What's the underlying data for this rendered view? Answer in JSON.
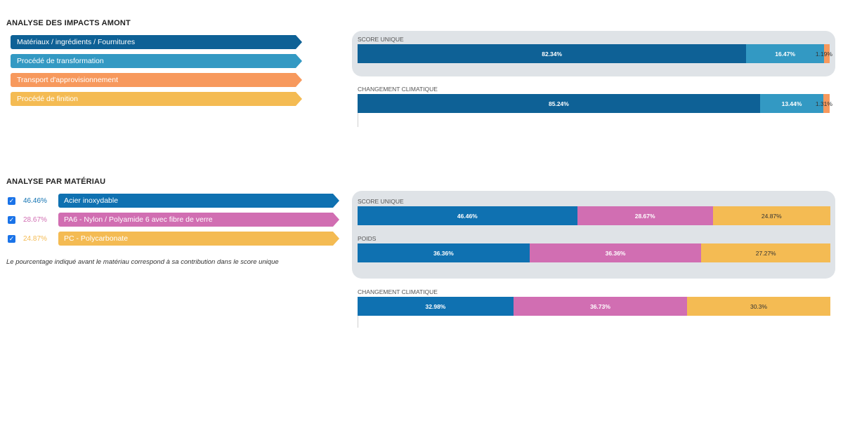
{
  "upstream": {
    "title": "ANALYSE DES IMPACTS AMONT",
    "legend": [
      {
        "label": "Matériaux / ingrédients / Fournitures",
        "color": "#0e6196"
      },
      {
        "label": "Procédé de transformation",
        "color": "#3399c3"
      },
      {
        "label": "Transport d'approvisionnement",
        "color": "#f7995d"
      },
      {
        "label": "Procédé de finition",
        "color": "#f4bb53"
      }
    ]
  },
  "materials": {
    "title": "ANALYSE PAR MATÉRIAU",
    "items": [
      {
        "pct": "46.46%",
        "label": "Acier inoxydable",
        "color": "#0f71b1",
        "checked": true
      },
      {
        "pct": "28.67%",
        "label": "PA6 - Nylon / Polyamide 6 avec fibre de verre",
        "color": "#d16eb2",
        "checked": true
      },
      {
        "pct": "24.87%",
        "label": "PC - Polycarbonate",
        "color": "#f4bb53",
        "checked": true
      }
    ],
    "note": "Le pourcentage indiqué avant le matériau correspond à sa contribution dans le score unique"
  },
  "chart_data": [
    {
      "type": "bar",
      "stacked": true,
      "orientation": "horizontal",
      "title": "SCORE UNIQUE",
      "series": [
        {
          "name": "Matériaux / ingrédients / Fournitures",
          "value": 82.34,
          "label": "82.34%",
          "color": "#0e6196"
        },
        {
          "name": "Procédé de transformation",
          "value": 16.47,
          "label": "16.47%",
          "color": "#3399c3"
        },
        {
          "name": "Transport d'approvisionnement",
          "value": 1.19,
          "label": "1.19%",
          "color": "#f7995d"
        }
      ]
    },
    {
      "type": "bar",
      "stacked": true,
      "orientation": "horizontal",
      "title": "CHANGEMENT CLIMATIQUE",
      "series": [
        {
          "name": "Matériaux / ingrédients / Fournitures",
          "value": 85.24,
          "label": "85.24%",
          "color": "#0e6196"
        },
        {
          "name": "Procédé de transformation",
          "value": 13.44,
          "label": "13.44%",
          "color": "#3399c3"
        },
        {
          "name": "Transport d'approvisionnement",
          "value": 1.31,
          "label": "1.31%",
          "color": "#f7995d"
        }
      ]
    },
    {
      "type": "bar",
      "stacked": true,
      "orientation": "horizontal",
      "title": "SCORE UNIQUE",
      "series": [
        {
          "name": "Acier inoxydable",
          "value": 46.46,
          "label": "46.46%",
          "color": "#0f71b1"
        },
        {
          "name": "PA6 - Nylon / Polyamide 6 avec fibre de verre",
          "value": 28.67,
          "label": "28.67%",
          "color": "#d16eb2"
        },
        {
          "name": "PC - Polycarbonate",
          "value": 24.87,
          "label": "24.87%",
          "color": "#f4bb53"
        }
      ]
    },
    {
      "type": "bar",
      "stacked": true,
      "orientation": "horizontal",
      "title": "POIDS",
      "series": [
        {
          "name": "Acier inoxydable",
          "value": 36.36,
          "label": "36.36%",
          "color": "#0f71b1"
        },
        {
          "name": "PA6 - Nylon / Polyamide 6 avec fibre de verre",
          "value": 36.36,
          "label": "36.36%",
          "color": "#d16eb2"
        },
        {
          "name": "PC - Polycarbonate",
          "value": 27.27,
          "label": "27.27%",
          "color": "#f4bb53"
        }
      ]
    },
    {
      "type": "bar",
      "stacked": true,
      "orientation": "horizontal",
      "title": "CHANGEMENT CLIMATIQUE",
      "series": [
        {
          "name": "Acier inoxydable",
          "value": 32.98,
          "label": "32.98%",
          "color": "#0f71b1"
        },
        {
          "name": "PA6 - Nylon / Polyamide 6 avec fibre de verre",
          "value": 36.73,
          "label": "36.73%",
          "color": "#d16eb2"
        },
        {
          "name": "PC - Polycarbonate",
          "value": 30.3,
          "label": "30.3%",
          "color": "#f4bb53"
        }
      ]
    }
  ]
}
